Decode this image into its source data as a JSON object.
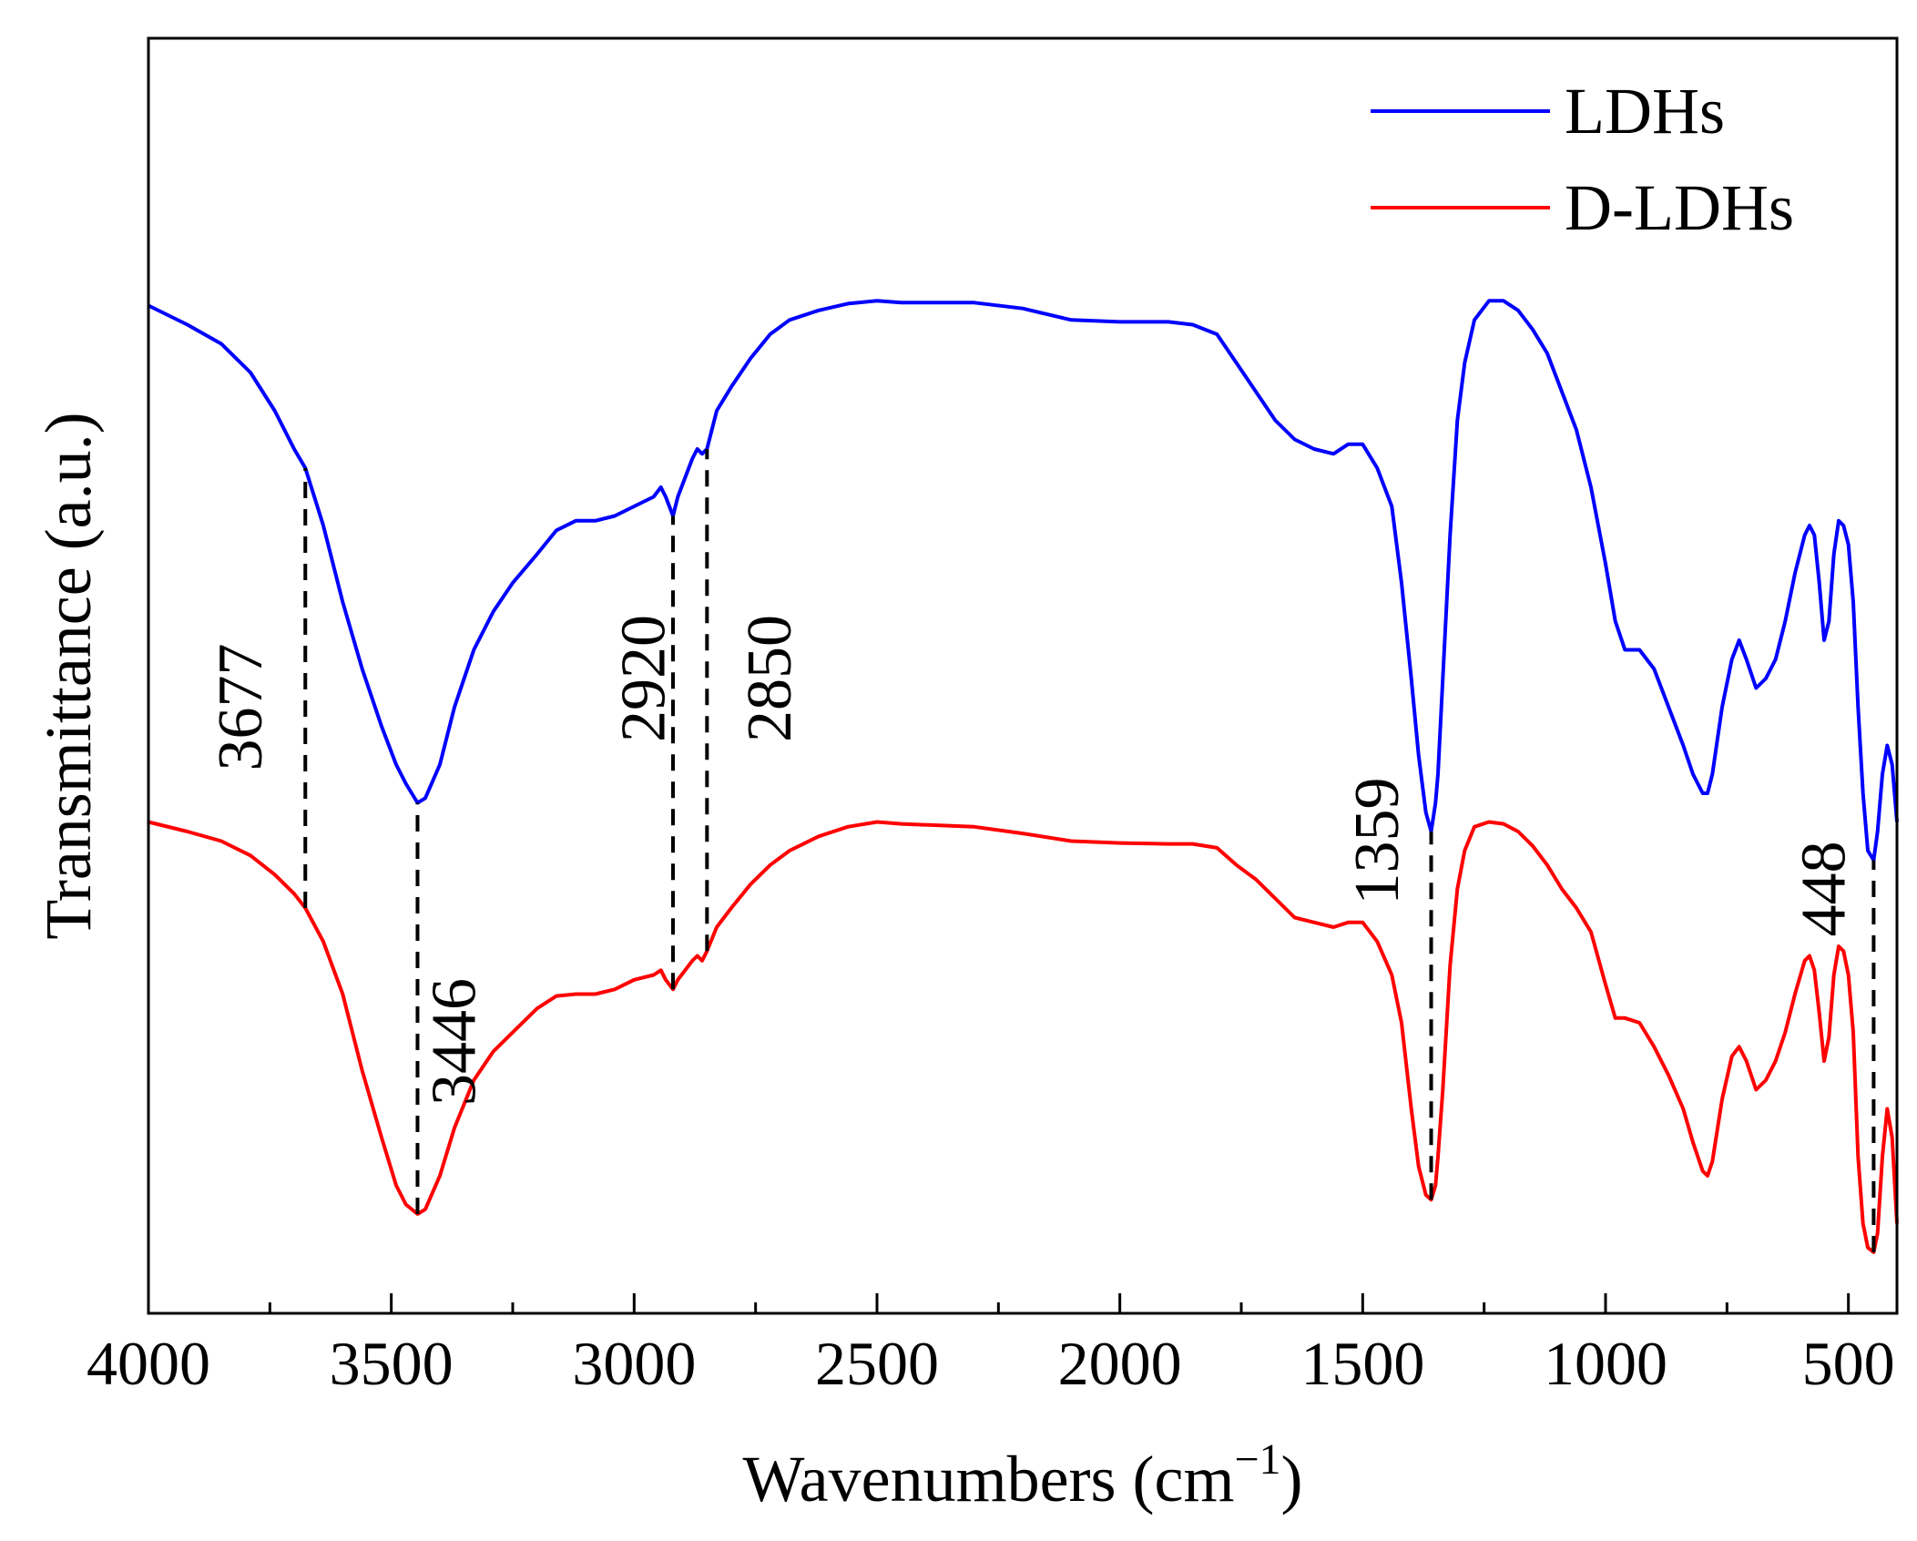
{
  "chart_data": {
    "type": "line",
    "title": "",
    "xlabel": "Wavenumbers (cm",
    "xlabel_sup": "−1",
    "xlabel_close": ")",
    "ylabel": "Transmittance (a.u.)",
    "xlim": [
      4000,
      400
    ],
    "x_reversed": true,
    "ylim": [
      0,
      100
    ],
    "y_ticks_shown": false,
    "grid": false,
    "legend_position": "top-right",
    "x_ticks": [
      4000,
      3500,
      3000,
      2500,
      2000,
      1500,
      1000,
      500
    ],
    "x_tick_labels": [
      "4000",
      "3500",
      "3000",
      "2500",
      "2000",
      "1500",
      "1000",
      "500"
    ],
    "x_minor_ticks": [
      3750,
      3250,
      2750,
      2250,
      1750,
      1250,
      750
    ],
    "series": [
      {
        "name": "LDHs",
        "color": "#0000ff",
        "points": [
          [
            4000,
            99
          ],
          [
            3920,
            97
          ],
          [
            3850,
            95
          ],
          [
            3790,
            92
          ],
          [
            3740,
            88
          ],
          [
            3700,
            84
          ],
          [
            3677,
            82
          ],
          [
            3640,
            76
          ],
          [
            3600,
            68
          ],
          [
            3560,
            61
          ],
          [
            3520,
            55
          ],
          [
            3490,
            51
          ],
          [
            3470,
            49
          ],
          [
            3446,
            47
          ],
          [
            3430,
            47.5
          ],
          [
            3400,
            51
          ],
          [
            3370,
            57
          ],
          [
            3330,
            63
          ],
          [
            3290,
            67
          ],
          [
            3250,
            70
          ],
          [
            3200,
            73
          ],
          [
            3160,
            75.5
          ],
          [
            3120,
            76.5
          ],
          [
            3080,
            76.5
          ],
          [
            3040,
            77
          ],
          [
            3000,
            78
          ],
          [
            2960,
            79
          ],
          [
            2945,
            80
          ],
          [
            2935,
            79
          ],
          [
            2920,
            77
          ],
          [
            2910,
            79
          ],
          [
            2895,
            81
          ],
          [
            2880,
            83
          ],
          [
            2870,
            84
          ],
          [
            2860,
            83.5
          ],
          [
            2850,
            84
          ],
          [
            2830,
            88
          ],
          [
            2800,
            90.5
          ],
          [
            2760,
            93.5
          ],
          [
            2720,
            96
          ],
          [
            2680,
            97.5
          ],
          [
            2620,
            98.5
          ],
          [
            2560,
            99.2
          ],
          [
            2500,
            99.5
          ],
          [
            2450,
            99.3
          ],
          [
            2300,
            99.3
          ],
          [
            2200,
            98.7
          ],
          [
            2100,
            97.5
          ],
          [
            2000,
            97.3
          ],
          [
            1900,
            97.3
          ],
          [
            1850,
            97
          ],
          [
            1800,
            96
          ],
          [
            1760,
            93
          ],
          [
            1720,
            90
          ],
          [
            1680,
            87
          ],
          [
            1640,
            85
          ],
          [
            1600,
            84
          ],
          [
            1560,
            83.5
          ],
          [
            1530,
            84.5
          ],
          [
            1500,
            84.5
          ],
          [
            1470,
            82
          ],
          [
            1440,
            78
          ],
          [
            1420,
            70
          ],
          [
            1400,
            60
          ],
          [
            1385,
            52
          ],
          [
            1370,
            46
          ],
          [
            1359,
            44
          ],
          [
            1350,
            47
          ],
          [
            1345,
            50
          ],
          [
            1335,
            60
          ],
          [
            1320,
            75
          ],
          [
            1305,
            87
          ],
          [
            1290,
            93
          ],
          [
            1270,
            97.5
          ],
          [
            1240,
            99.5
          ],
          [
            1210,
            99.5
          ],
          [
            1180,
            98.5
          ],
          [
            1150,
            96.5
          ],
          [
            1120,
            94
          ],
          [
            1090,
            90
          ],
          [
            1060,
            86
          ],
          [
            1030,
            80
          ],
          [
            1000,
            72
          ],
          [
            980,
            66
          ],
          [
            960,
            63
          ],
          [
            930,
            63
          ],
          [
            900,
            61
          ],
          [
            870,
            57
          ],
          [
            840,
            53
          ],
          [
            820,
            50
          ],
          [
            800,
            48
          ],
          [
            790,
            48
          ],
          [
            780,
            50
          ],
          [
            760,
            57
          ],
          [
            740,
            62
          ],
          [
            725,
            64
          ],
          [
            710,
            62
          ],
          [
            690,
            59
          ],
          [
            670,
            60
          ],
          [
            650,
            62
          ],
          [
            630,
            66
          ],
          [
            610,
            71
          ],
          [
            590,
            75
          ],
          [
            580,
            76
          ],
          [
            570,
            75
          ],
          [
            560,
            70
          ],
          [
            550,
            64
          ],
          [
            540,
            66
          ],
          [
            530,
            73
          ],
          [
            520,
            76.5
          ],
          [
            510,
            76
          ],
          [
            500,
            74
          ],
          [
            490,
            68
          ],
          [
            480,
            57
          ],
          [
            470,
            48
          ],
          [
            460,
            42
          ],
          [
            448,
            41
          ],
          [
            440,
            44
          ],
          [
            430,
            50
          ],
          [
            420,
            53
          ],
          [
            410,
            51
          ],
          [
            400,
            45
          ]
        ]
      },
      {
        "name": "D-LDHs",
        "color": "#ff0000",
        "points": [
          [
            4000,
            45
          ],
          [
            3920,
            44
          ],
          [
            3850,
            43
          ],
          [
            3790,
            41.5
          ],
          [
            3740,
            39.5
          ],
          [
            3700,
            37.5
          ],
          [
            3677,
            36
          ],
          [
            3640,
            32.5
          ],
          [
            3600,
            27
          ],
          [
            3560,
            19
          ],
          [
            3520,
            12
          ],
          [
            3490,
            7
          ],
          [
            3470,
            5
          ],
          [
            3446,
            4
          ],
          [
            3430,
            4.5
          ],
          [
            3400,
            8
          ],
          [
            3370,
            13
          ],
          [
            3330,
            18
          ],
          [
            3290,
            21
          ],
          [
            3250,
            23
          ],
          [
            3200,
            25.5
          ],
          [
            3160,
            26.8
          ],
          [
            3120,
            27
          ],
          [
            3080,
            27
          ],
          [
            3040,
            27.5
          ],
          [
            3000,
            28.5
          ],
          [
            2960,
            29
          ],
          [
            2945,
            29.5
          ],
          [
            2935,
            28.5
          ],
          [
            2920,
            27.5
          ],
          [
            2910,
            28.5
          ],
          [
            2895,
            29.5
          ],
          [
            2880,
            30.5
          ],
          [
            2870,
            31
          ],
          [
            2860,
            30.5
          ],
          [
            2850,
            31.5
          ],
          [
            2830,
            34
          ],
          [
            2800,
            36
          ],
          [
            2760,
            38.5
          ],
          [
            2720,
            40.5
          ],
          [
            2680,
            42
          ],
          [
            2620,
            43.5
          ],
          [
            2560,
            44.5
          ],
          [
            2500,
            45
          ],
          [
            2450,
            44.8
          ],
          [
            2300,
            44.5
          ],
          [
            2200,
            43.8
          ],
          [
            2100,
            43
          ],
          [
            2000,
            42.8
          ],
          [
            1900,
            42.7
          ],
          [
            1850,
            42.7
          ],
          [
            1800,
            42.3
          ],
          [
            1760,
            40.5
          ],
          [
            1720,
            39
          ],
          [
            1680,
            37
          ],
          [
            1640,
            35
          ],
          [
            1600,
            34.5
          ],
          [
            1560,
            34
          ],
          [
            1530,
            34.5
          ],
          [
            1500,
            34.5
          ],
          [
            1470,
            32.5
          ],
          [
            1440,
            29
          ],
          [
            1420,
            24
          ],
          [
            1400,
            15
          ],
          [
            1385,
            9
          ],
          [
            1370,
            6
          ],
          [
            1359,
            5.5
          ],
          [
            1350,
            7
          ],
          [
            1345,
            10
          ],
          [
            1335,
            17
          ],
          [
            1320,
            30
          ],
          [
            1305,
            38
          ],
          [
            1290,
            42
          ],
          [
            1270,
            44.5
          ],
          [
            1240,
            45
          ],
          [
            1210,
            44.8
          ],
          [
            1180,
            44
          ],
          [
            1150,
            42.5
          ],
          [
            1120,
            40.5
          ],
          [
            1090,
            38
          ],
          [
            1060,
            36
          ],
          [
            1030,
            33.5
          ],
          [
            1000,
            28
          ],
          [
            980,
            24.5
          ],
          [
            960,
            24.5
          ],
          [
            930,
            24
          ],
          [
            900,
            21.5
          ],
          [
            870,
            18.5
          ],
          [
            840,
            15
          ],
          [
            820,
            11.5
          ],
          [
            800,
            8.5
          ],
          [
            790,
            8
          ],
          [
            780,
            9.5
          ],
          [
            760,
            16
          ],
          [
            740,
            20.5
          ],
          [
            725,
            21.5
          ],
          [
            710,
            20
          ],
          [
            690,
            17
          ],
          [
            670,
            18
          ],
          [
            650,
            20
          ],
          [
            630,
            23
          ],
          [
            610,
            27
          ],
          [
            590,
            30.5
          ],
          [
            580,
            31
          ],
          [
            570,
            29.5
          ],
          [
            560,
            25
          ],
          [
            550,
            20
          ],
          [
            540,
            22.5
          ],
          [
            530,
            29
          ],
          [
            520,
            32
          ],
          [
            510,
            31.5
          ],
          [
            500,
            29
          ],
          [
            490,
            23
          ],
          [
            480,
            10
          ],
          [
            470,
            3
          ],
          [
            460,
            0.5
          ],
          [
            448,
            0
          ],
          [
            440,
            2
          ],
          [
            430,
            10
          ],
          [
            420,
            15
          ],
          [
            410,
            12
          ],
          [
            400,
            3
          ]
        ]
      }
    ],
    "annotations": [
      {
        "label": "3677",
        "x": 3677,
        "y_from": 36,
        "y_to": 82,
        "text_x": 3810,
        "text_y": 57
      },
      {
        "label": "3446",
        "x": 3446,
        "y_from": 4,
        "y_to": 47,
        "text_x": 3370,
        "text_y": 22
      },
      {
        "label": "2920",
        "x": 2920,
        "y_from": 27.5,
        "y_to": 77,
        "text_x": 2980,
        "text_y": 60
      },
      {
        "label": "2850",
        "x": 2850,
        "y_from": 31.5,
        "y_to": 84,
        "text_x": 2720,
        "text_y": 60
      },
      {
        "label": "1359",
        "x": 1359,
        "y_from": 5.5,
        "y_to": 44,
        "text_x": 1470,
        "text_y": 43
      },
      {
        "label": "448",
        "x": 448,
        "y_from": 0,
        "y_to": 41,
        "text_x": 550,
        "text_y": 38
      }
    ]
  }
}
